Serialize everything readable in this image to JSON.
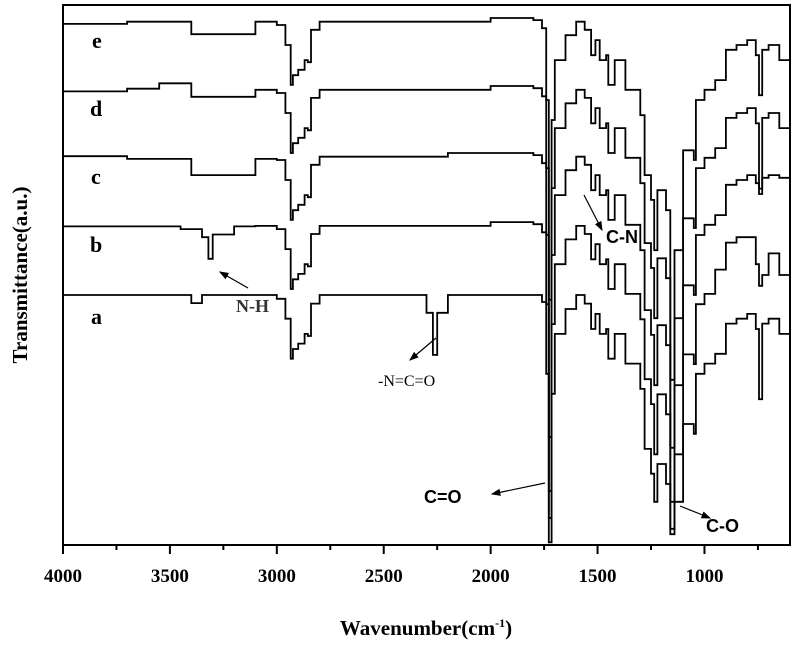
{
  "chart_data": {
    "type": "line",
    "title": "",
    "xlabel": "Wavenumber(cm",
    "xlabel_sup": "-1",
    "xlabel_close": ")",
    "ylabel": "Transmittance(a.u.)",
    "xlim": [
      4000,
      600
    ],
    "x_reversed": true,
    "ylim": [
      0,
      100
    ],
    "y_ticks_shown": false,
    "grid": false,
    "legend": "none",
    "line_color": "#000000",
    "x_ticks": [
      4000,
      3500,
      3000,
      2500,
      2000,
      1500,
      1000
    ],
    "x_tick_labels": [
      "4000",
      "3500",
      "3000",
      "2500",
      "2000",
      "1500",
      "1000"
    ],
    "series": [
      {
        "name": "e",
        "points": [
          [
            4000,
            96.5
          ],
          [
            3700,
            96.9
          ],
          [
            3400,
            94.6
          ],
          [
            3100,
            96.9
          ],
          [
            3000,
            96.3
          ],
          [
            2960,
            92.6
          ],
          [
            2935,
            85.2
          ],
          [
            2925,
            87.0
          ],
          [
            2900,
            88.0
          ],
          [
            2870,
            89.8
          ],
          [
            2855,
            89.4
          ],
          [
            2840,
            95.4
          ],
          [
            2800,
            96.9
          ],
          [
            2000,
            97.6
          ],
          [
            1800,
            97.2
          ],
          [
            1760,
            95.7
          ],
          [
            1740,
            82.4
          ],
          [
            1728,
            45.4
          ],
          [
            1715,
            78.7
          ],
          [
            1700,
            89.8
          ],
          [
            1650,
            94.4
          ],
          [
            1600,
            96.9
          ],
          [
            1560,
            95.4
          ],
          [
            1530,
            90.7
          ],
          [
            1510,
            93.5
          ],
          [
            1490,
            89.8
          ],
          [
            1460,
            90.7
          ],
          [
            1450,
            85.2
          ],
          [
            1420,
            89.8
          ],
          [
            1380,
            89.8
          ],
          [
            1370,
            84.3
          ],
          [
            1300,
            79.6
          ],
          [
            1280,
            68.5
          ],
          [
            1250,
            63.9
          ],
          [
            1235,
            54.6
          ],
          [
            1220,
            65.7
          ],
          [
            1180,
            62.0
          ],
          [
            1160,
            30.6
          ],
          [
            1140,
            54.6
          ],
          [
            1100,
            73.1
          ],
          [
            1050,
            71.3
          ],
          [
            1040,
            82.4
          ],
          [
            1000,
            84.3
          ],
          [
            950,
            86.1
          ],
          [
            900,
            91.7
          ],
          [
            850,
            92.6
          ],
          [
            800,
            93.5
          ],
          [
            760,
            90.7
          ],
          [
            745,
            83.3
          ],
          [
            730,
            91.7
          ],
          [
            700,
            92.6
          ],
          [
            650,
            89.8
          ],
          [
            600,
            88.9
          ]
        ]
      },
      {
        "name": "d",
        "points": [
          [
            4000,
            84
          ],
          [
            3700,
            84.5
          ],
          [
            3550,
            85.5
          ],
          [
            3400,
            83
          ],
          [
            3100,
            84.3
          ],
          [
            3000,
            83.7
          ],
          [
            2960,
            80
          ],
          [
            2935,
            72.6
          ],
          [
            2925,
            74.4
          ],
          [
            2900,
            75.4
          ],
          [
            2870,
            77.2
          ],
          [
            2855,
            76.8
          ],
          [
            2840,
            82.8
          ],
          [
            2800,
            84.3
          ],
          [
            2000,
            85
          ],
          [
            1800,
            84.6
          ],
          [
            1760,
            83.1
          ],
          [
            1740,
            69.8
          ],
          [
            1728,
            20
          ],
          [
            1715,
            66.1
          ],
          [
            1700,
            77.2
          ],
          [
            1650,
            81.8
          ],
          [
            1600,
            84.3
          ],
          [
            1560,
            82.8
          ],
          [
            1530,
            78.1
          ],
          [
            1510,
            80.9
          ],
          [
            1490,
            77.2
          ],
          [
            1460,
            78.1
          ],
          [
            1450,
            72.6
          ],
          [
            1420,
            77.2
          ],
          [
            1380,
            77.2
          ],
          [
            1370,
            71.7
          ],
          [
            1300,
            67
          ],
          [
            1280,
            55.9
          ],
          [
            1250,
            51.3
          ],
          [
            1235,
            42
          ],
          [
            1220,
            53.1
          ],
          [
            1180,
            49.4
          ],
          [
            1160,
            18
          ],
          [
            1140,
            42
          ],
          [
            1100,
            60.5
          ],
          [
            1050,
            58.7
          ],
          [
            1040,
            69.8
          ],
          [
            1000,
            71.7
          ],
          [
            950,
            73.5
          ],
          [
            900,
            79.1
          ],
          [
            850,
            80
          ],
          [
            800,
            80.9
          ],
          [
            760,
            78.1
          ],
          [
            745,
            65
          ],
          [
            730,
            79.1
          ],
          [
            700,
            80
          ],
          [
            650,
            77.2
          ],
          [
            600,
            76.3
          ]
        ]
      },
      {
        "name": "c",
        "points": [
          [
            4000,
            72
          ],
          [
            3700,
            71.5
          ],
          [
            3400,
            68.5
          ],
          [
            3100,
            71.5
          ],
          [
            3000,
            71.3
          ],
          [
            2960,
            67.6
          ],
          [
            2935,
            60.2
          ],
          [
            2925,
            62
          ],
          [
            2900,
            63
          ],
          [
            2870,
            64.8
          ],
          [
            2855,
            64.4
          ],
          [
            2840,
            70.4
          ],
          [
            2800,
            71.9
          ],
          [
            2200,
            72.6
          ],
          [
            2000,
            72.6
          ],
          [
            1800,
            72.2
          ],
          [
            1760,
            70.7
          ],
          [
            1740,
            57.4
          ],
          [
            1728,
            10
          ],
          [
            1715,
            53.7
          ],
          [
            1700,
            64.8
          ],
          [
            1650,
            69.4
          ],
          [
            1600,
            71.9
          ],
          [
            1560,
            70.4
          ],
          [
            1530,
            65.7
          ],
          [
            1510,
            68.5
          ],
          [
            1490,
            64.8
          ],
          [
            1460,
            65.7
          ],
          [
            1450,
            60.2
          ],
          [
            1420,
            64.8
          ],
          [
            1380,
            64.8
          ],
          [
            1370,
            59.3
          ],
          [
            1300,
            54.6
          ],
          [
            1280,
            43.5
          ],
          [
            1250,
            38.9
          ],
          [
            1235,
            29.6
          ],
          [
            1220,
            40.7
          ],
          [
            1180,
            37
          ],
          [
            1160,
            8
          ],
          [
            1140,
            29.6
          ],
          [
            1100,
            48.1
          ],
          [
            1050,
            46.3
          ],
          [
            1040,
            57.4
          ],
          [
            1000,
            59.3
          ],
          [
            950,
            61.1
          ],
          [
            900,
            66.7
          ],
          [
            850,
            67.6
          ],
          [
            800,
            68.5
          ],
          [
            760,
            67
          ],
          [
            745,
            66
          ],
          [
            730,
            68
          ],
          [
            700,
            68.5
          ],
          [
            650,
            68
          ],
          [
            600,
            66.9
          ]
        ]
      },
      {
        "name": "b",
        "points": [
          [
            4000,
            59
          ],
          [
            3700,
            59
          ],
          [
            3450,
            58.5
          ],
          [
            3350,
            57
          ],
          [
            3320,
            53
          ],
          [
            3300,
            57.5
          ],
          [
            3200,
            59
          ],
          [
            3100,
            59.1
          ],
          [
            3000,
            58.5
          ],
          [
            2960,
            54.8
          ],
          [
            2935,
            47.4
          ],
          [
            2925,
            49.2
          ],
          [
            2900,
            50.2
          ],
          [
            2870,
            52
          ],
          [
            2855,
            51.6
          ],
          [
            2840,
            57.6
          ],
          [
            2800,
            59.1
          ],
          [
            2000,
            59.8
          ],
          [
            1800,
            59.4
          ],
          [
            1760,
            57.9
          ],
          [
            1740,
            44.6
          ],
          [
            1728,
            5
          ],
          [
            1715,
            40.9
          ],
          [
            1700,
            52
          ],
          [
            1650,
            56.6
          ],
          [
            1600,
            59.1
          ],
          [
            1560,
            57.6
          ],
          [
            1530,
            52.9
          ],
          [
            1510,
            55.7
          ],
          [
            1490,
            52
          ],
          [
            1460,
            52.9
          ],
          [
            1450,
            47.4
          ],
          [
            1420,
            52
          ],
          [
            1380,
            52
          ],
          [
            1370,
            46.5
          ],
          [
            1300,
            41.8
          ],
          [
            1280,
            30.7
          ],
          [
            1250,
            26.1
          ],
          [
            1235,
            16.8
          ],
          [
            1220,
            27.9
          ],
          [
            1180,
            24.2
          ],
          [
            1160,
            3
          ],
          [
            1140,
            16.8
          ],
          [
            1100,
            35.3
          ],
          [
            1050,
            33.5
          ],
          [
            1040,
            44.6
          ],
          [
            1000,
            46.5
          ],
          [
            950,
            51
          ],
          [
            900,
            56
          ],
          [
            850,
            57
          ],
          [
            800,
            57
          ],
          [
            760,
            52
          ],
          [
            745,
            48
          ],
          [
            730,
            50
          ],
          [
            700,
            54
          ],
          [
            650,
            50
          ],
          [
            600,
            52
          ]
        ]
      },
      {
        "name": "a",
        "points": [
          [
            4000,
            46.3
          ],
          [
            3500,
            46.3
          ],
          [
            3400,
            44.8
          ],
          [
            3350,
            46.3
          ],
          [
            3000,
            45.6
          ],
          [
            2960,
            41.9
          ],
          [
            2935,
            34.5
          ],
          [
            2925,
            36.3
          ],
          [
            2900,
            37.3
          ],
          [
            2870,
            39.1
          ],
          [
            2855,
            38.7
          ],
          [
            2840,
            44.7
          ],
          [
            2800,
            46.3
          ],
          [
            2350,
            46.3
          ],
          [
            2300,
            43
          ],
          [
            2270,
            35.2
          ],
          [
            2250,
            43
          ],
          [
            2200,
            46.3
          ],
          [
            1800,
            46.3
          ],
          [
            1760,
            45
          ],
          [
            1740,
            31.7
          ],
          [
            1728,
            0.5
          ],
          [
            1715,
            28
          ],
          [
            1700,
            39.1
          ],
          [
            1650,
            43.7
          ],
          [
            1600,
            46.3
          ],
          [
            1560,
            44.7
          ],
          [
            1530,
            40
          ],
          [
            1510,
            42.8
          ],
          [
            1490,
            39.1
          ],
          [
            1460,
            40
          ],
          [
            1450,
            34.5
          ],
          [
            1420,
            39.1
          ],
          [
            1380,
            39.1
          ],
          [
            1370,
            33.6
          ],
          [
            1300,
            28.9
          ],
          [
            1280,
            17.8
          ],
          [
            1250,
            13.2
          ],
          [
            1235,
            8
          ],
          [
            1220,
            15
          ],
          [
            1180,
            11.3
          ],
          [
            1160,
            2
          ],
          [
            1140,
            8
          ],
          [
            1100,
            22.4
          ],
          [
            1050,
            20.6
          ],
          [
            1040,
            31.7
          ],
          [
            1000,
            33.6
          ],
          [
            950,
            35.4
          ],
          [
            900,
            41
          ],
          [
            850,
            41.9
          ],
          [
            800,
            42.8
          ],
          [
            760,
            40
          ],
          [
            745,
            27
          ],
          [
            730,
            41
          ],
          [
            700,
            41.9
          ],
          [
            650,
            39.1
          ],
          [
            600,
            38.2
          ]
        ]
      }
    ],
    "annotations": [
      {
        "text": "N-H",
        "wavenumber": 3320,
        "series": "b"
      },
      {
        "text": "-N=C=O",
        "wavenumber": 2270,
        "series": "a"
      },
      {
        "text": "C=O",
        "wavenumber": 1730,
        "series": "a"
      },
      {
        "text": "C-N",
        "wavenumber": 1530,
        "series": "c"
      },
      {
        "text": "C-O",
        "wavenumber": 1160,
        "series": "a"
      }
    ]
  }
}
